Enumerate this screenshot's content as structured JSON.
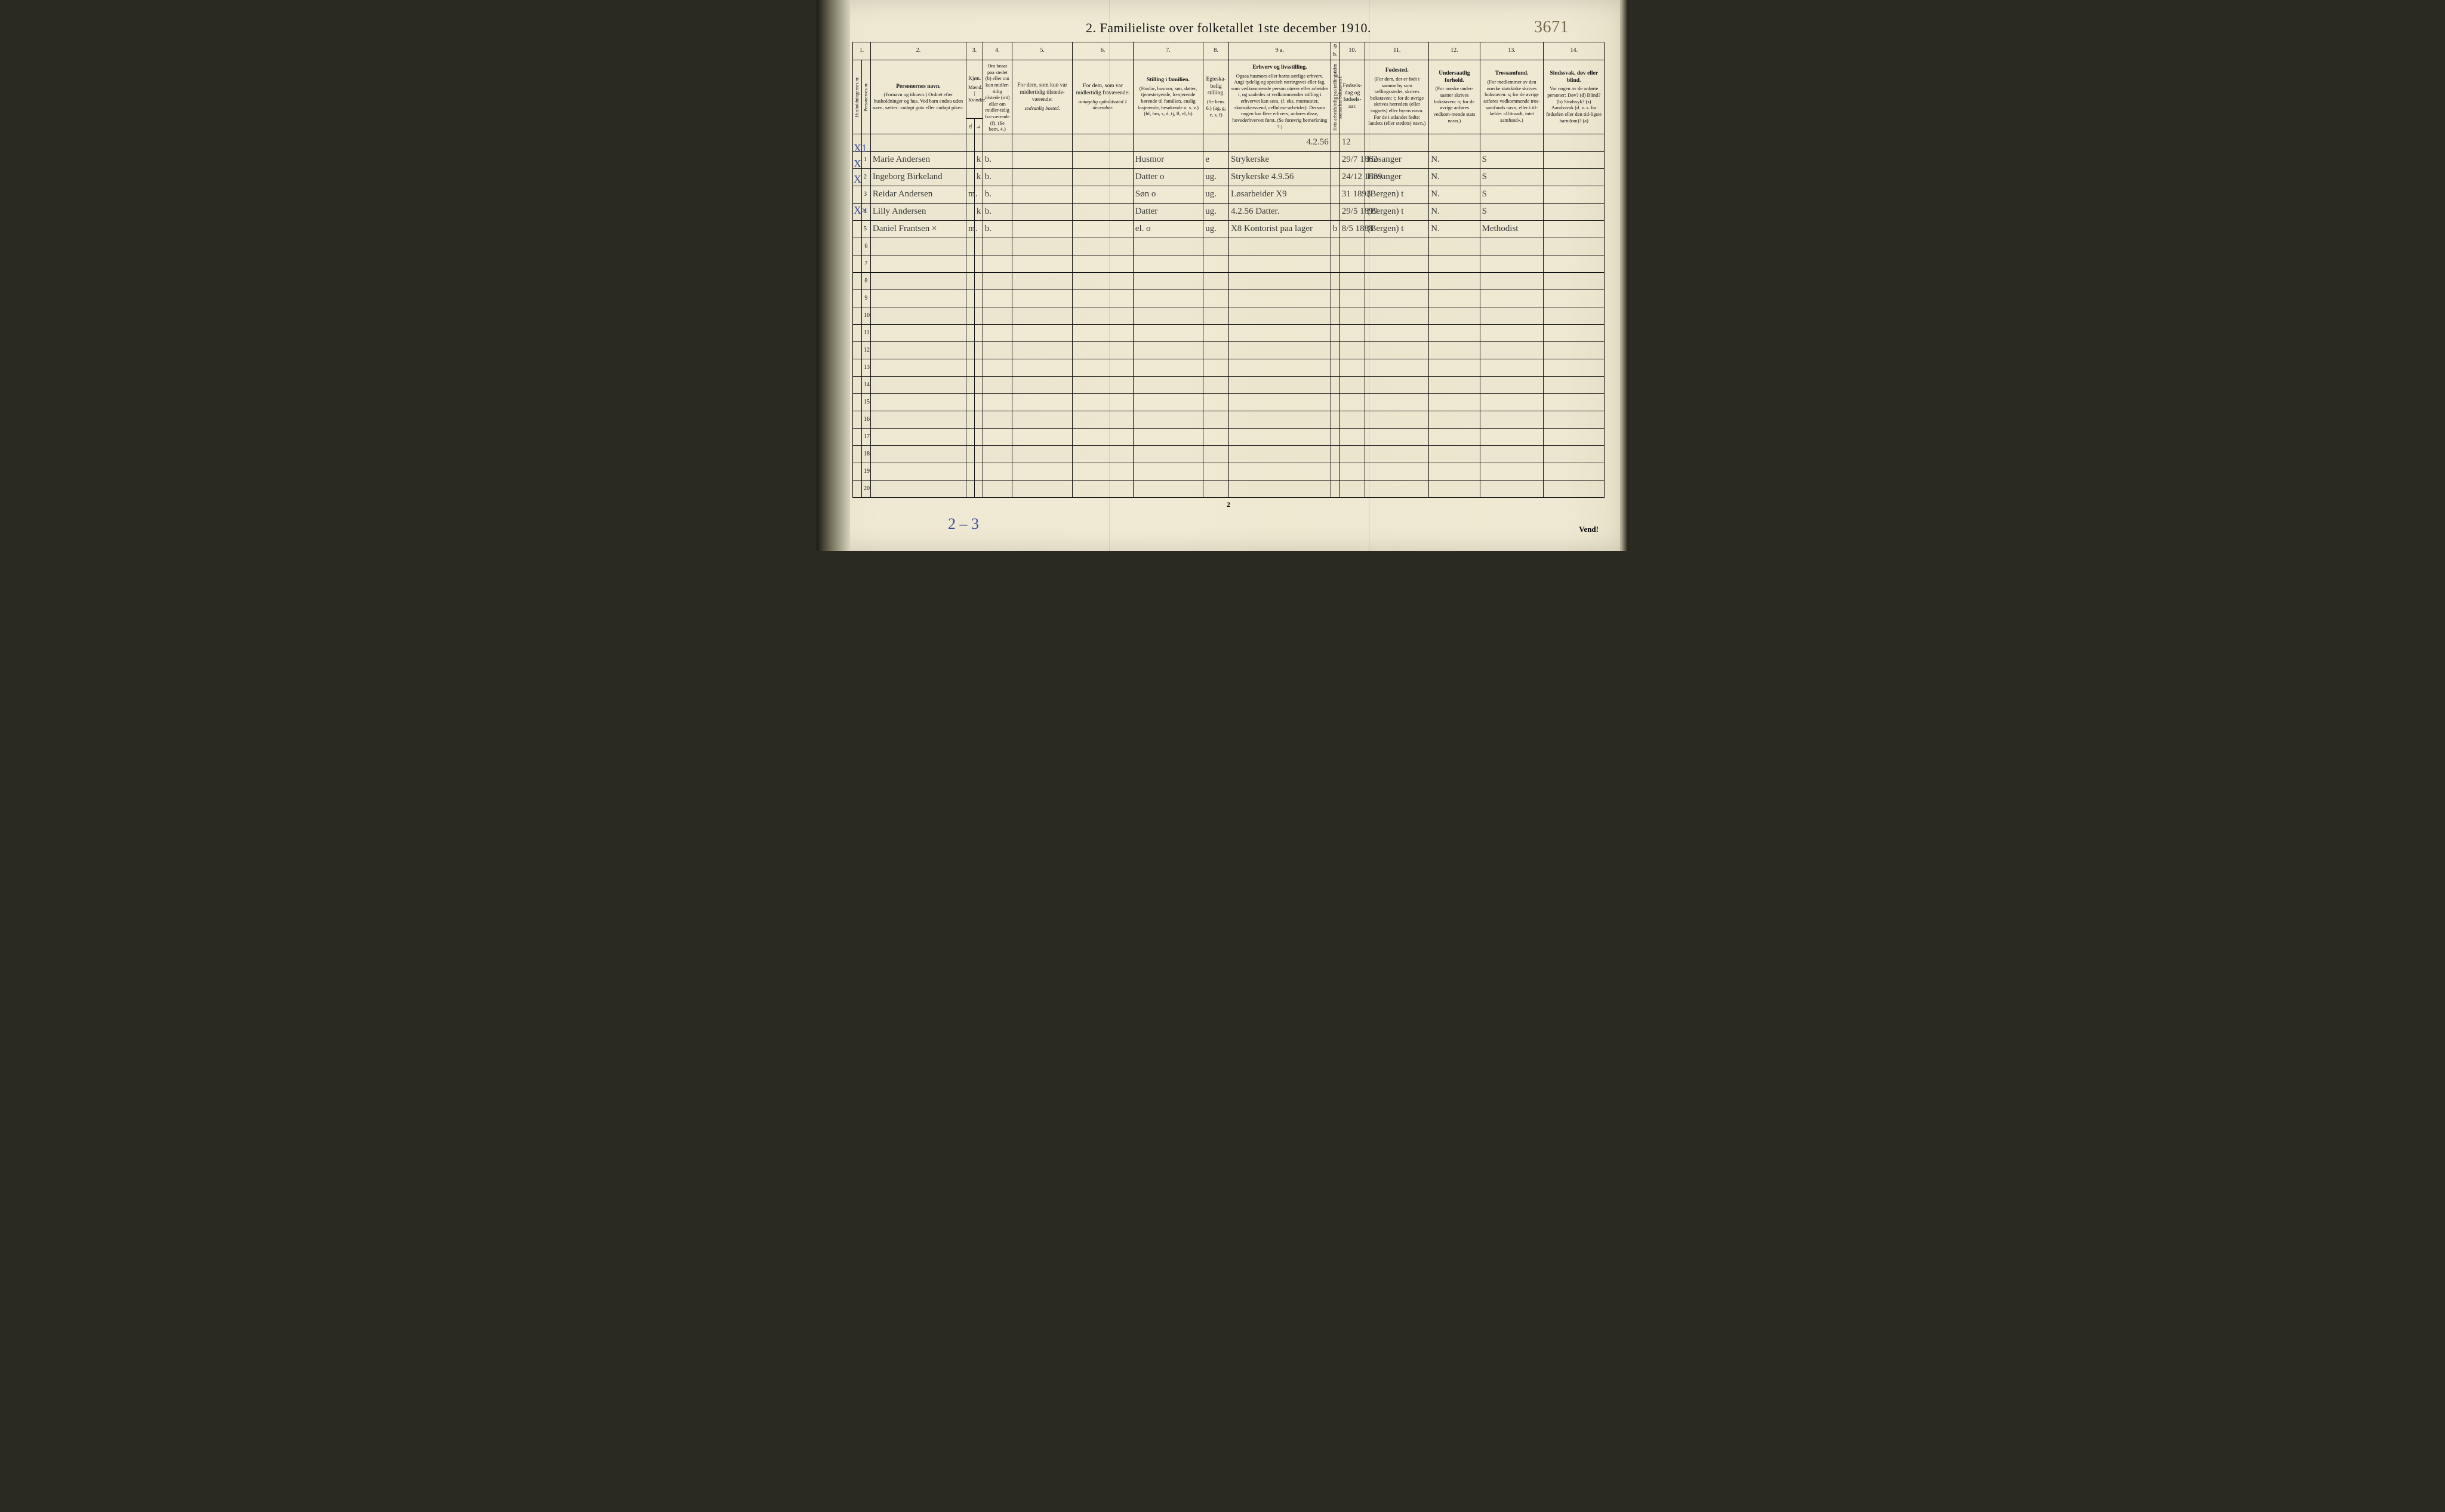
{
  "title": "2.   Familieliste over folketallet 1ste december 1910.",
  "page_annotation": "3671",
  "footer_page_number": "2",
  "footer_annotation": "2 – 3",
  "vend": "Vend!",
  "column_numbers": [
    "1.",
    "",
    "2.",
    "3.",
    "4.",
    "5.",
    "6.",
    "7.",
    "8.",
    "9 a.",
    "9 b.",
    "10.",
    "11.",
    "12.",
    "13.",
    "14."
  ],
  "headers": {
    "c1": "Husholdningernes nr.",
    "c2": "Personernes nr.",
    "c3": "Personernes navn.",
    "c3_sub": "(Fornavn og tilnavn.)\nOrdnet efter husholdninger og hus.\nVed barn endnu uden navn, sættes: «udøpt gut» eller «udøpt pike».",
    "c45": "Kjøn.",
    "c45_sub": "Mænd. | Kvinder.",
    "c4_small": "m.",
    "c5_small": "k.",
    "c6": "Om bosat paa stedet (b) eller om kun midler-tidig tilstede (mt) eller om midler-tidig fra-værende (f). (Se bem. 4.)",
    "c7": "For dem, som kun var midlertidig tilstede-værende:",
    "c7_sub": "sedvanlig bosted.",
    "c8": "For dem, som var midlertidig fraværende:",
    "c8_sub": "antagelig opholdssted 1 december.",
    "c9": "Stilling i familien.",
    "c9_sub": "(Husfar, husmor, søn, datter, tjenestetyende, lo-sjerende hørende til familien, enslig losjerende, besøkende o. s. v.)\n(hf, hm, s, d, tj, fl, el, b)",
    "c10": "Egteska-belig stilling.",
    "c10_sub": "(Se bem. 6.)\n(ug, g, e, s, f)",
    "c11": "Erhverv og livsstilling.",
    "c11_sub": "Ogsaa husmors eller barns særlige erhverv. Angi tydelig og specielt næringsvei eller fag, som vedkommende person utøver eller arbeider i, og saaledes at vedkommendes stilling i erhvervet kan sees, (f. eks. murmester, skomakersvend, cellulose-arbeider). Dersom nogen har flere erhverv, anføres disse, hovederhvervet først. (Se forøvrig bemerkning 7.)",
    "c12": "Hvis arbeidsledig paa tællingstiden sættes her bokstaven l.",
    "c13": "Fødsels-dag og fødsels-aar.",
    "c14": "Fødested.",
    "c14_sub": "(For dem, der er født i samme by som tællingsstedet, skrives bokstaven: t; for de øvrige skrives herredets (eller sognets) eller byens navn. For de i utlandet fødte: landets (eller stedets) navn.)",
    "c15": "Undersaatlig forhold.",
    "c15_sub": "(For norske under-saatter skrives bokstaven: n; for de øvrige anføres vedkom-mende stats navn.)",
    "c16": "Trossamfund.",
    "c16_sub": "(For medlemmer av den norske statskirke skrives bokstaven: s; for de øvrige anføres vedkommende tros-samfunds navn, eller i til-fælde: «Uttraadt, intet samfund».)",
    "c17": "Sindssvak, døv eller blind.",
    "c17_sub": "Var nogen av de anførte personer: Døv? (d) Blind? (b) Sindssyk? (s) Aandssvak (d. v. s. fra fødselen eller den tid-ligste barndom)? (a)"
  },
  "pre_row_note": "4.2.56",
  "rows": [
    {
      "mark": "X1",
      "no": "1",
      "name": "Marie Andersen",
      "m": "",
      "k": "k",
      "res": "b.",
      "away": "",
      "absent": "",
      "fam": "Husmor",
      "ms": "e",
      "occ": "Strykerske",
      "led": "",
      "dob": "29/7 1862",
      "birthplace": "Hosanger",
      "nat": "N.",
      "rel": "S",
      "dis": ""
    },
    {
      "mark": "X",
      "no": "2",
      "name": "Ingeborg Birkeland",
      "m": "",
      "k": "k",
      "res": "b.",
      "away": "",
      "absent": "",
      "fam": "Datter  o",
      "ms": "ug.",
      "occ": "Strykerske 4.9.56",
      "led": "",
      "dob": "24/12 1889",
      "birthplace": "Hosanger",
      "nat": "N.",
      "rel": "S",
      "dis": ""
    },
    {
      "mark": "X",
      "no": "3",
      "name": "Reidar Andersen",
      "m": "m.",
      "k": "",
      "res": "b.",
      "away": "",
      "absent": "",
      "fam": "Søn   o",
      "ms": "ug.",
      "occ": "Løsarbeider X9",
      "led": "",
      "dob": "31 1893",
      "birthplace": "(Bergen) t",
      "nat": "N.",
      "rel": "S",
      "dis": ""
    },
    {
      "mark": "",
      "no": "4",
      "name": "Lilly Andersen",
      "m": "",
      "k": "k",
      "res": "b.",
      "away": "",
      "absent": "",
      "fam": "Datter",
      "ms": "ug.",
      "occ": "4.2.56  Datter.",
      "led": "",
      "dob": "29/5 1899",
      "birthplace": "(Bergen) t",
      "nat": "N.",
      "rel": "S",
      "dis": ""
    },
    {
      "mark": "X×",
      "no": "5",
      "name": "Daniel Frantsen ×",
      "m": "m.",
      "k": "",
      "res": "b.",
      "away": "",
      "absent": "",
      "fam": "el.   o",
      "ms": "ug.",
      "occ": "X8 Kontorist paa lager",
      "led": "b",
      "dob": "8/5 1888",
      "birthplace": "(Bergen) t",
      "nat": "N.",
      "rel": "Methodist",
      "dis": ""
    }
  ],
  "blank_rows": 15,
  "colors": {
    "paper": "#efe9d3",
    "ink": "#111111",
    "handwriting": "#3a3a38",
    "blue_pencil": "#3a4a9a",
    "faded_pencil": "#766b4f"
  }
}
